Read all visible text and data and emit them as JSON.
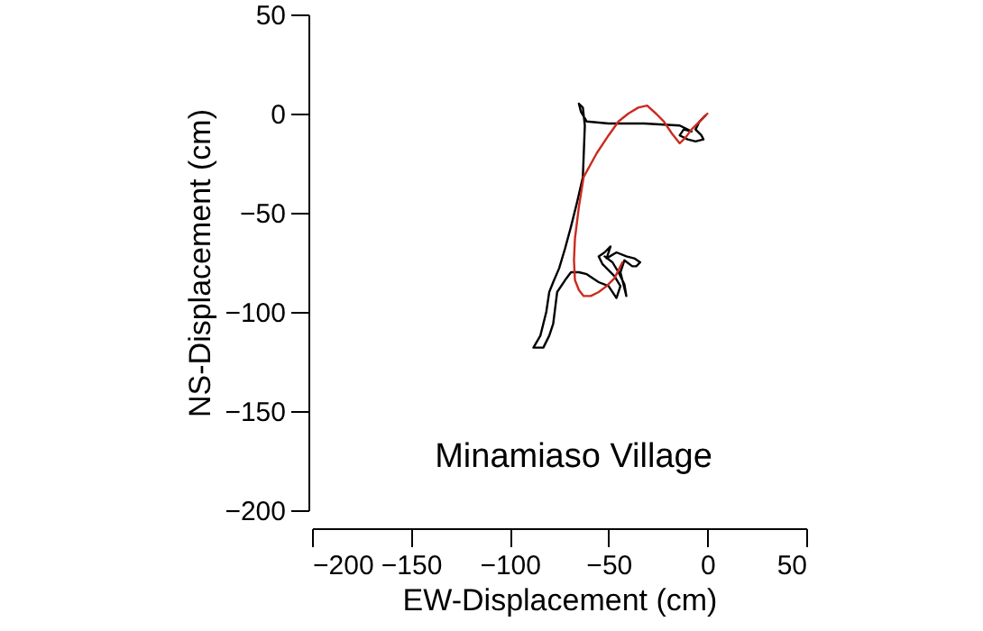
{
  "chart_data": {
    "type": "line",
    "xlabel": "EW-Displacement (cm)",
    "ylabel": "NS-Displacement (cm)",
    "annotations": [
      "Minamiaso Village"
    ],
    "xlim": [
      -200,
      50
    ],
    "ylim": [
      -200,
      50
    ],
    "xticks": [
      -200,
      -150,
      -100,
      -50,
      0,
      50
    ],
    "yticks": [
      -200,
      -150,
      -100,
      -50,
      0,
      50
    ],
    "grid": false,
    "marker": "none",
    "line_style": "solid",
    "series": [
      {
        "color": "#000000",
        "x": [
          -1,
          -4,
          -6,
          -3,
          -2,
          -6,
          -10,
          -14,
          -12,
          -8,
          -14,
          -32,
          -50,
          -61,
          -64,
          -65,
          -63,
          -62,
          -63,
          -66,
          -69,
          -72,
          -75,
          -78,
          -80,
          -81.5,
          -84.5,
          -88,
          -83,
          -80,
          -78,
          -77,
          -76,
          -72,
          -69,
          -65,
          -61,
          -55,
          -50,
          -46,
          -44,
          -47,
          -53,
          -55,
          -52,
          -49,
          -51,
          -46,
          -41,
          -37,
          -34,
          -36,
          -38,
          -42,
          -44,
          -41,
          -42,
          -45,
          -48,
          -52
        ],
        "values": [
          -1,
          -4,
          -8,
          -11,
          -13,
          -14,
          -13,
          -11,
          -8,
          -9,
          -6,
          -5,
          -5,
          -4,
          1,
          5,
          3,
          -6,
          -32,
          -45,
          -57,
          -68,
          -78,
          -85,
          -90,
          -100,
          -112,
          -118,
          -118,
          -112,
          -106,
          -98,
          -90,
          -84,
          -80,
          -80,
          -81,
          -85,
          -87,
          -93,
          -87,
          -82,
          -76,
          -72,
          -70,
          -67,
          -73,
          -70,
          -72,
          -73,
          -75,
          -77,
          -77,
          -74,
          -80,
          -92,
          -86,
          -80,
          -75,
          -72
        ]
      },
      {
        "color": "#cc2a1f",
        "x": [
          0,
          -4,
          -8,
          -11,
          -14,
          -18,
          -22,
          -26,
          -30.5,
          -35,
          -40,
          -45,
          -50,
          -56,
          -62.6,
          -65,
          -67,
          -67.5,
          -67,
          -65,
          -62.6,
          -59,
          -55,
          -51,
          -47,
          -43
        ],
        "values": [
          0,
          -4,
          -8,
          -12,
          -15,
          -10,
          -4,
          0,
          4,
          3,
          0,
          -4,
          -11,
          -20,
          -32,
          -47,
          -63,
          -74,
          -84,
          -89,
          -92,
          -92,
          -90,
          -87,
          -83,
          -75
        ]
      }
    ]
  }
}
